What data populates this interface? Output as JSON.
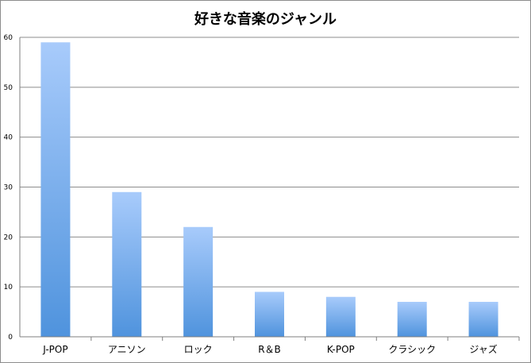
{
  "chart_data": {
    "type": "bar",
    "title": "好きな音楽のジャンル",
    "xlabel": "",
    "ylabel": "",
    "categories": [
      "J-POP",
      "アニソン",
      "ロック",
      "R＆B",
      "K-POP",
      "クラシック",
      "ジャズ"
    ],
    "values": [
      59,
      29,
      22,
      9,
      8,
      7,
      7
    ],
    "ylim": [
      0,
      60
    ],
    "yticks": [
      0,
      10,
      20,
      30,
      40,
      50,
      60
    ],
    "grid": true,
    "legend": "none",
    "colors": {
      "bar_top": "#a8cbfb",
      "bar_bottom": "#4f93dd",
      "grid": "#8c8c8c",
      "axis": "#7f7f7f"
    }
  }
}
